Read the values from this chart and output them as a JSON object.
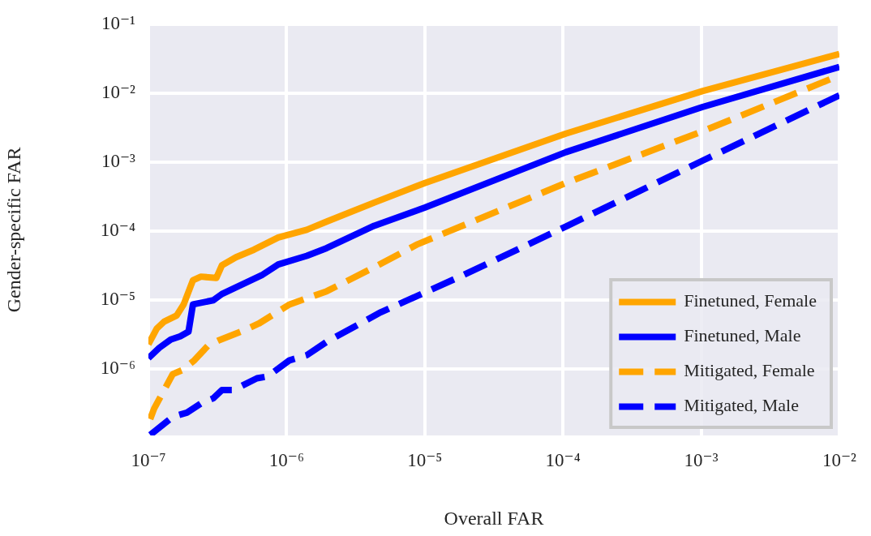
{
  "chart_data": {
    "type": "line",
    "xlabel": "Overall FAR",
    "ylabel": "Gender-specific FAR",
    "log": "xy",
    "grid": true,
    "legend": "bottom right",
    "marker": "none",
    "xlim": [
      1e-07,
      0.01
    ],
    "ylim": [
      1.1e-07,
      0.1
    ],
    "xticks": [
      {
        "value": 1e-07,
        "label": "10⁻⁷"
      },
      {
        "value": 1e-06,
        "label": "10⁻⁶"
      },
      {
        "value": 1e-05,
        "label": "10⁻⁵"
      },
      {
        "value": 0.0001,
        "label": "10⁻⁴"
      },
      {
        "value": 0.001,
        "label": "10⁻³"
      },
      {
        "value": 0.01,
        "label": "10⁻²"
      }
    ],
    "yticks": [
      {
        "value": 1e-06,
        "label": "10⁻⁶"
      },
      {
        "value": 1e-05,
        "label": "10⁻⁵"
      },
      {
        "value": 0.0001,
        "label": "10⁻⁴"
      },
      {
        "value": 0.001,
        "label": "10⁻³"
      },
      {
        "value": 0.01,
        "label": "10⁻²"
      },
      {
        "value": 0.1,
        "label": "10⁻¹"
      }
    ],
    "series": [
      {
        "name": "Finetuned, Female",
        "color": "#ffa500",
        "line_style": "solid",
        "x": [
          1e-07,
          1.15e-07,
          1.3e-07,
          1.6e-07,
          1.8e-07,
          2.1e-07,
          2.4e-07,
          3.1e-07,
          3.4e-07,
          4.3e-07,
          5.8e-07,
          7.6e-07,
          8.7e-07,
          1.4e-06,
          1.95e-06,
          4.3e-06,
          1e-05,
          0.000105,
          0.00102,
          0.01
        ],
        "values": [
          2.3e-06,
          3.9e-06,
          4.9e-06,
          6e-06,
          8.7e-06,
          1.95e-05,
          2.2e-05,
          2.1e-05,
          3.2e-05,
          4.2e-05,
          5.4e-05,
          7.1e-05,
          8.1e-05,
          0.000105,
          0.000138,
          0.00026,
          0.0005,
          0.0026,
          0.0107,
          0.037
        ]
      },
      {
        "name": "Finetuned, Male",
        "color": "#0000ff",
        "line_style": "solid",
        "x": [
          1e-07,
          1.2e-07,
          1.45e-07,
          1.7e-07,
          1.95e-07,
          2.1e-07,
          2.95e-07,
          3.4e-07,
          6.6e-07,
          8.7e-07,
          1.4e-06,
          1.95e-06,
          4.3e-06,
          1e-05,
          0.000105,
          0.00102,
          0.01
        ],
        "values": [
          1.45e-06,
          2.05e-06,
          2.7e-06,
          3e-06,
          3.5e-06,
          8.7e-06,
          1e-05,
          1.23e-05,
          2.3e-05,
          3.3e-05,
          4.4e-05,
          5.7e-05,
          0.00012,
          0.00022,
          0.0014,
          0.0063,
          0.024
        ]
      },
      {
        "name": "Mitigated, Female",
        "color": "#ffa500",
        "line_style": "dashed",
        "x": [
          1.03e-07,
          1.1e-07,
          1.3e-07,
          1.5e-07,
          1.75e-07,
          2.15e-07,
          2.7e-07,
          3.2e-07,
          5e-07,
          6.3e-07,
          1.05e-06,
          1.95e-06,
          4.3e-06,
          8.9e-06,
          0.000105,
          0.00102,
          0.0093
        ],
        "values": [
          1.9e-07,
          2.7e-07,
          5e-07,
          8.5e-07,
          9.7e-07,
          1.35e-06,
          2.2e-06,
          2.6e-06,
          3.7e-06,
          4.6e-06,
          8.7e-06,
          1.35e-05,
          3e-05,
          6.5e-05,
          0.0005,
          0.0028,
          0.017
        ]
      },
      {
        "name": "Mitigated, Male",
        "color": "#0000ff",
        "line_style": "dashed",
        "x": [
          1.03e-07,
          1.5e-07,
          1.9e-07,
          2.4e-07,
          2.95e-07,
          3.4e-07,
          4.1e-07,
          6.1e-07,
          7.3e-07,
          1.05e-06,
          1.4e-06,
          1.95e-06,
          4.8e-06,
          1.8e-05,
          0.000105,
          0.00102,
          0.01
        ],
        "values": [
          1.12e-07,
          2.05e-07,
          2.35e-07,
          3.2e-07,
          3.8e-07,
          5e-07,
          5e-07,
          7.4e-07,
          7.9e-07,
          1.35e-06,
          1.6e-06,
          2.5e-06,
          6.7e-06,
          2.2e-05,
          0.000117,
          0.00105,
          0.0093
        ]
      }
    ]
  }
}
